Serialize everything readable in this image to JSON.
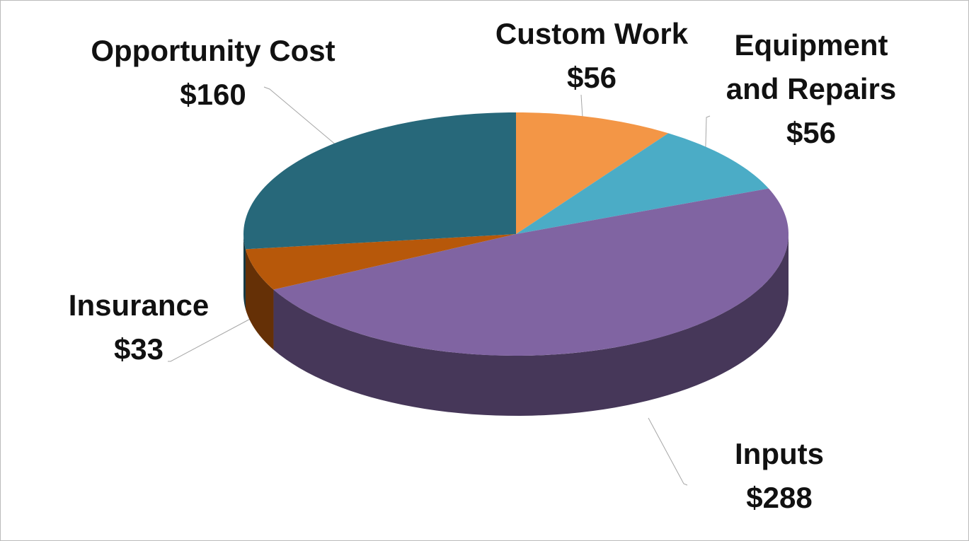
{
  "chart_data": {
    "type": "pie",
    "categories": [
      "Custom Work",
      "Equipment and Repairs",
      "Inputs",
      "Insurance",
      "Opportunity Cost"
    ],
    "values": [
      56,
      56,
      288,
      33,
      160
    ],
    "value_labels": [
      "$56",
      "$56",
      "$288",
      "$33",
      "$160"
    ],
    "colors": [
      "#f39646",
      "#4bacc6",
      "#8064a2",
      "#b7580a",
      "#27687a"
    ]
  }
}
